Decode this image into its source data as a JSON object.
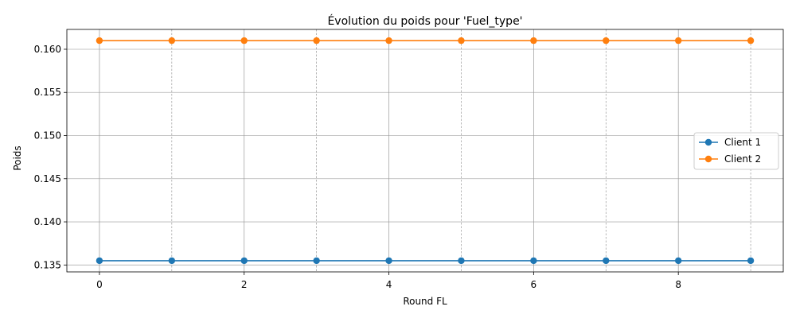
{
  "chart_data": {
    "type": "line",
    "title": "Évolution du poids pour 'Fuel_type'",
    "xlabel": "Round FL",
    "ylabel": "Poids",
    "x": [
      0,
      1,
      2,
      3,
      4,
      5,
      6,
      7,
      8,
      9
    ],
    "xlim": [
      -0.45,
      9.45
    ],
    "ylim": [
      0.1342,
      0.1623
    ],
    "xticks": [
      0,
      2,
      4,
      6,
      8
    ],
    "yticks": [
      0.135,
      0.14,
      0.145,
      0.15,
      0.155,
      0.16
    ],
    "ytick_labels": [
      "0.135",
      "0.140",
      "0.145",
      "0.150",
      "0.155",
      "0.160"
    ],
    "grid": true,
    "legend_position": "center-right",
    "series": [
      {
        "name": "Client 1",
        "color": "#1f77b4",
        "marker": "circle",
        "values": [
          0.1355,
          0.1355,
          0.1355,
          0.1355,
          0.1355,
          0.1355,
          0.1355,
          0.1355,
          0.1355,
          0.1355
        ]
      },
      {
        "name": "Client 2",
        "color": "#ff7f0e",
        "marker": "circle",
        "values": [
          0.161,
          0.161,
          0.161,
          0.161,
          0.161,
          0.161,
          0.161,
          0.161,
          0.161,
          0.161
        ]
      }
    ]
  }
}
